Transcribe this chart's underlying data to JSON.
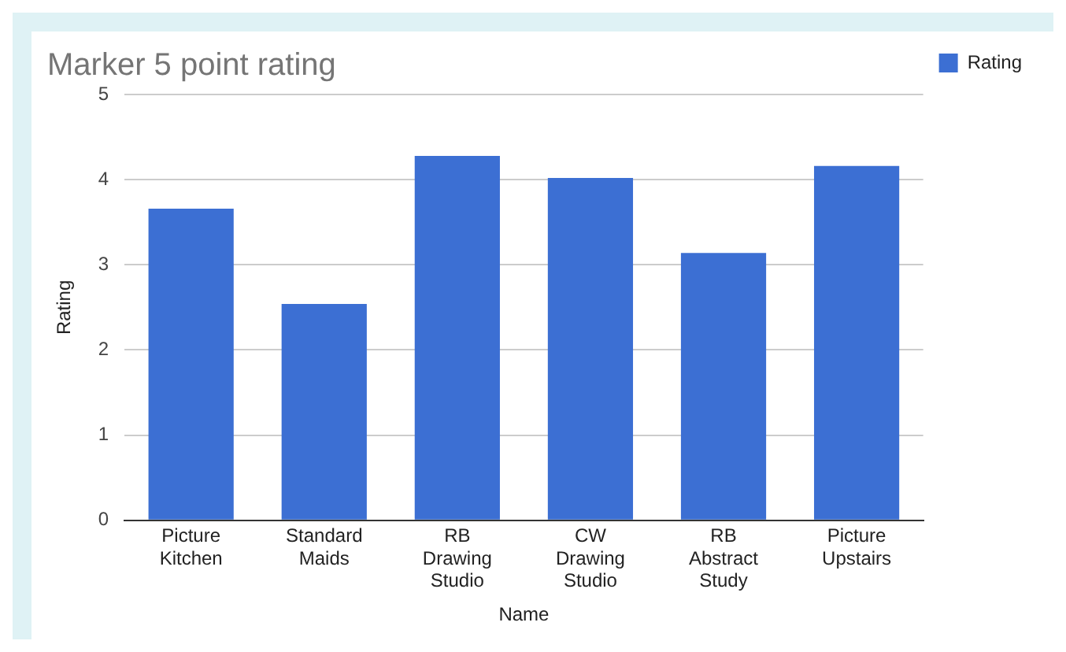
{
  "chart_data": {
    "type": "bar",
    "title": "Marker 5 point rating",
    "xlabel": "Name",
    "ylabel": "Rating",
    "categories": [
      "Picture Kitchen",
      "Standard Maids",
      "RB Drawing Studio",
      "CW Drawing Studio",
      "RB Abstract Study",
      "Picture Upstairs"
    ],
    "series": [
      {
        "name": "Rating",
        "color": "#3c6fd3",
        "values": [
          3.66,
          2.54,
          4.28,
          4.02,
          3.14,
          4.16
        ]
      }
    ],
    "ylim": [
      0,
      5
    ],
    "yticks": [
      0,
      1,
      2,
      3,
      4,
      5
    ],
    "grid": "y",
    "legend": "top right"
  }
}
